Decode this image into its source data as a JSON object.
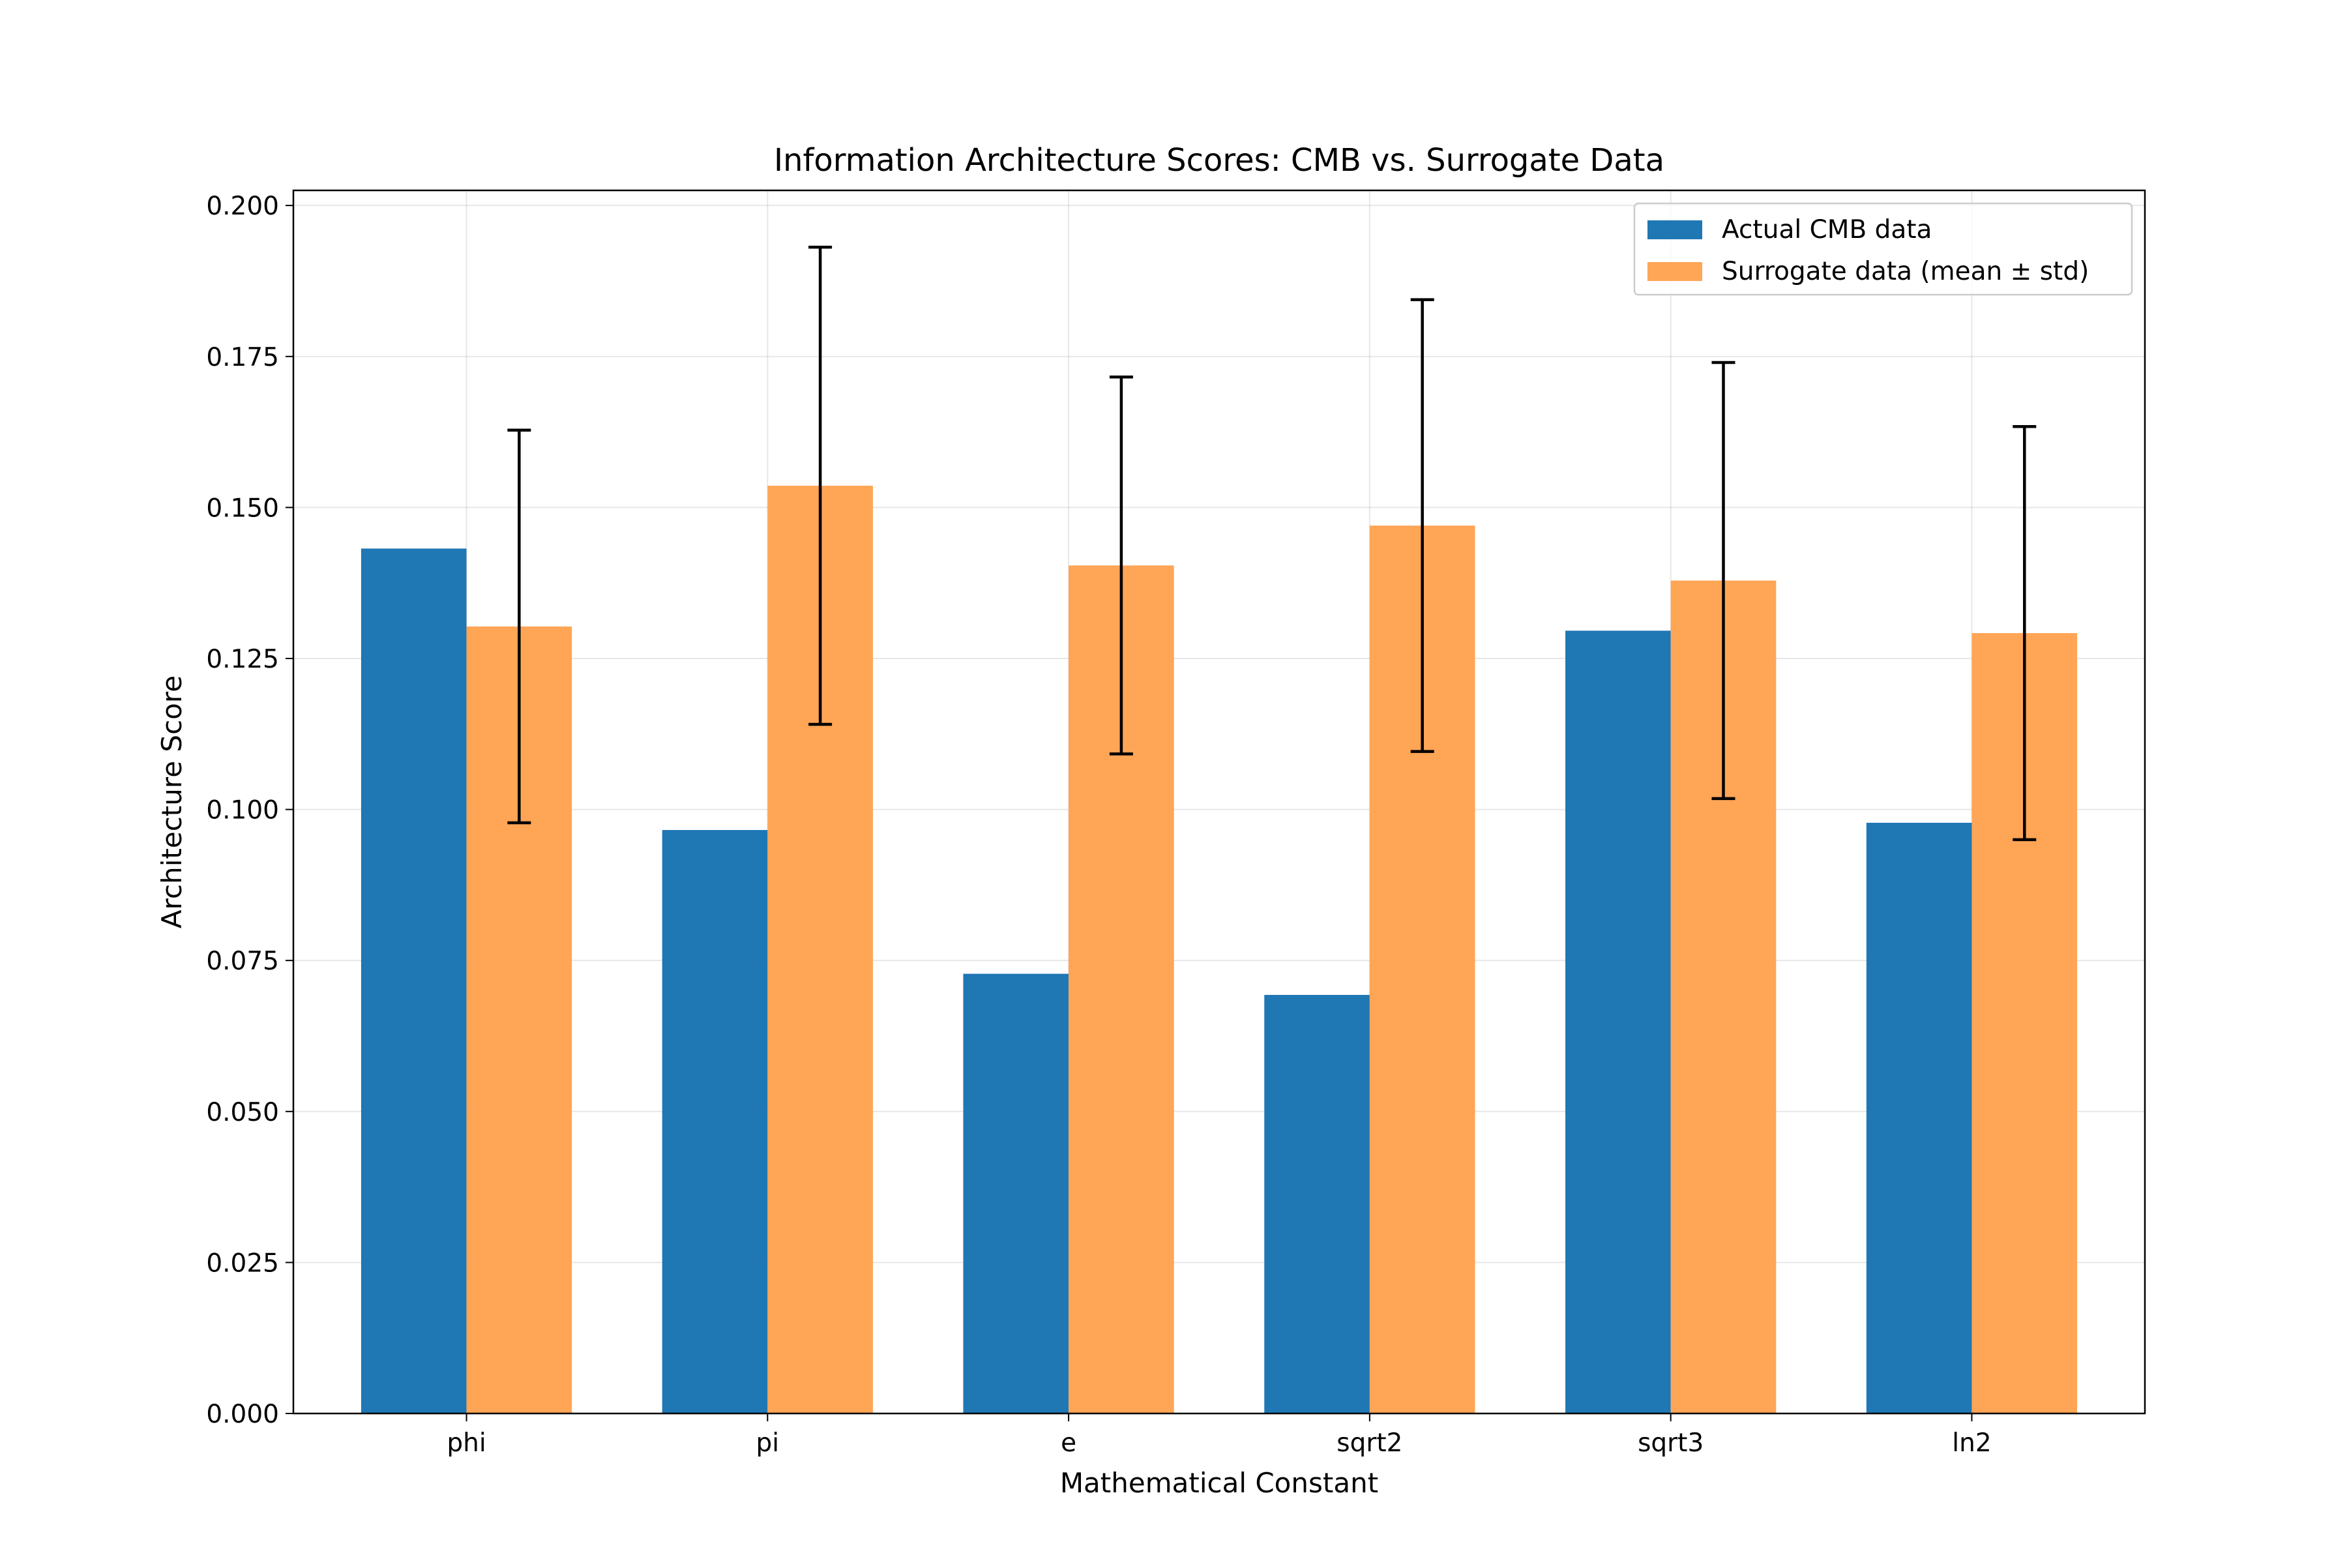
{
  "chart_data": {
    "type": "bar",
    "title": "Information Architecture Scores: CMB vs. Surrogate Data",
    "xlabel": "Mathematical Constant",
    "ylabel": "Architecture Score",
    "categories": [
      "phi",
      "pi",
      "e",
      "sqrt2",
      "sqrt3",
      "ln2"
    ],
    "ylim": [
      0,
      0.2025
    ],
    "yticks": [
      0.0,
      0.025,
      0.05,
      0.075,
      0.1,
      0.125,
      0.15,
      0.175,
      0.2
    ],
    "ytick_labels": [
      "0.000",
      "0.025",
      "0.050",
      "0.075",
      "0.100",
      "0.125",
      "0.150",
      "0.175",
      "0.200"
    ],
    "grid": true,
    "legend_position": "top-right",
    "series": [
      {
        "name": "Actual CMB data",
        "color": "#1f77b4",
        "values": [
          0.1432,
          0.0966,
          0.0728,
          0.0693,
          0.1296,
          0.0978
        ]
      },
      {
        "name": "Surrogate data (mean ± std)",
        "color": "#ffa556",
        "values": [
          0.1303,
          0.1536,
          0.1404,
          0.147,
          0.1379,
          0.1292
        ],
        "error": [
          0.0325,
          0.0395,
          0.0312,
          0.0374,
          0.0361,
          0.0342
        ]
      }
    ]
  }
}
